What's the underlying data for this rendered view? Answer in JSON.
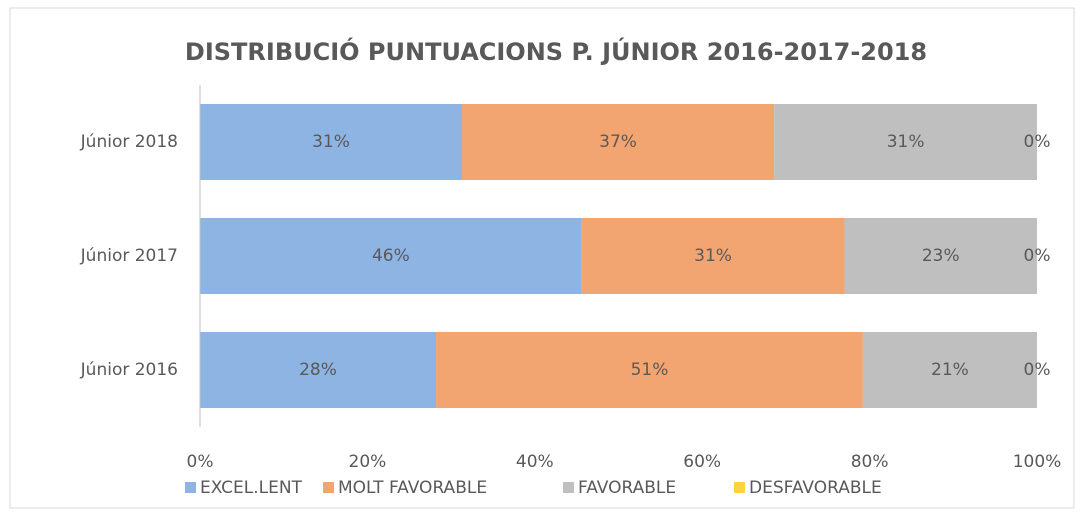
{
  "chart_data": {
    "type": "stacked-barh",
    "title": "DISTRIBUCIÓ PUNTUACIONS  P. JÚNIOR 2016-2017-2018",
    "categories": [
      "Júnior 2018",
      "Júnior 2017",
      "Júnior 2016"
    ],
    "series": [
      {
        "name": "EXCEL.LENT",
        "color": "#8db4e2",
        "values": [
          31.3,
          45.6,
          28.2
        ],
        "value_labels": [
          "31%",
          "46%",
          "28%"
        ]
      },
      {
        "name": "MOLT FAVORABLE",
        "color": "#f2a571",
        "values": [
          37.3,
          31.4,
          51.0
        ],
        "value_labels": [
          "37%",
          "31%",
          "51%"
        ]
      },
      {
        "name": "FAVORABLE",
        "color": "#bfbfbf",
        "values": [
          31.4,
          23.0,
          20.8
        ],
        "value_labels": [
          "31%",
          "23%",
          "21%"
        ]
      },
      {
        "name": "DESFAVORABLE",
        "color": "#ffd33f",
        "values": [
          0,
          0,
          0
        ],
        "value_labels": [
          "0%",
          "0%",
          "0%"
        ]
      }
    ],
    "xlim": [
      0,
      100
    ],
    "xticks": [
      {
        "value": 0,
        "label": "0%"
      },
      {
        "value": 20,
        "label": "20%"
      },
      {
        "value": 40,
        "label": "40%"
      },
      {
        "value": 60,
        "label": "60%"
      },
      {
        "value": 80,
        "label": "80%"
      },
      {
        "value": 100,
        "label": "100%"
      }
    ],
    "grid": false,
    "legend": "bottom"
  }
}
